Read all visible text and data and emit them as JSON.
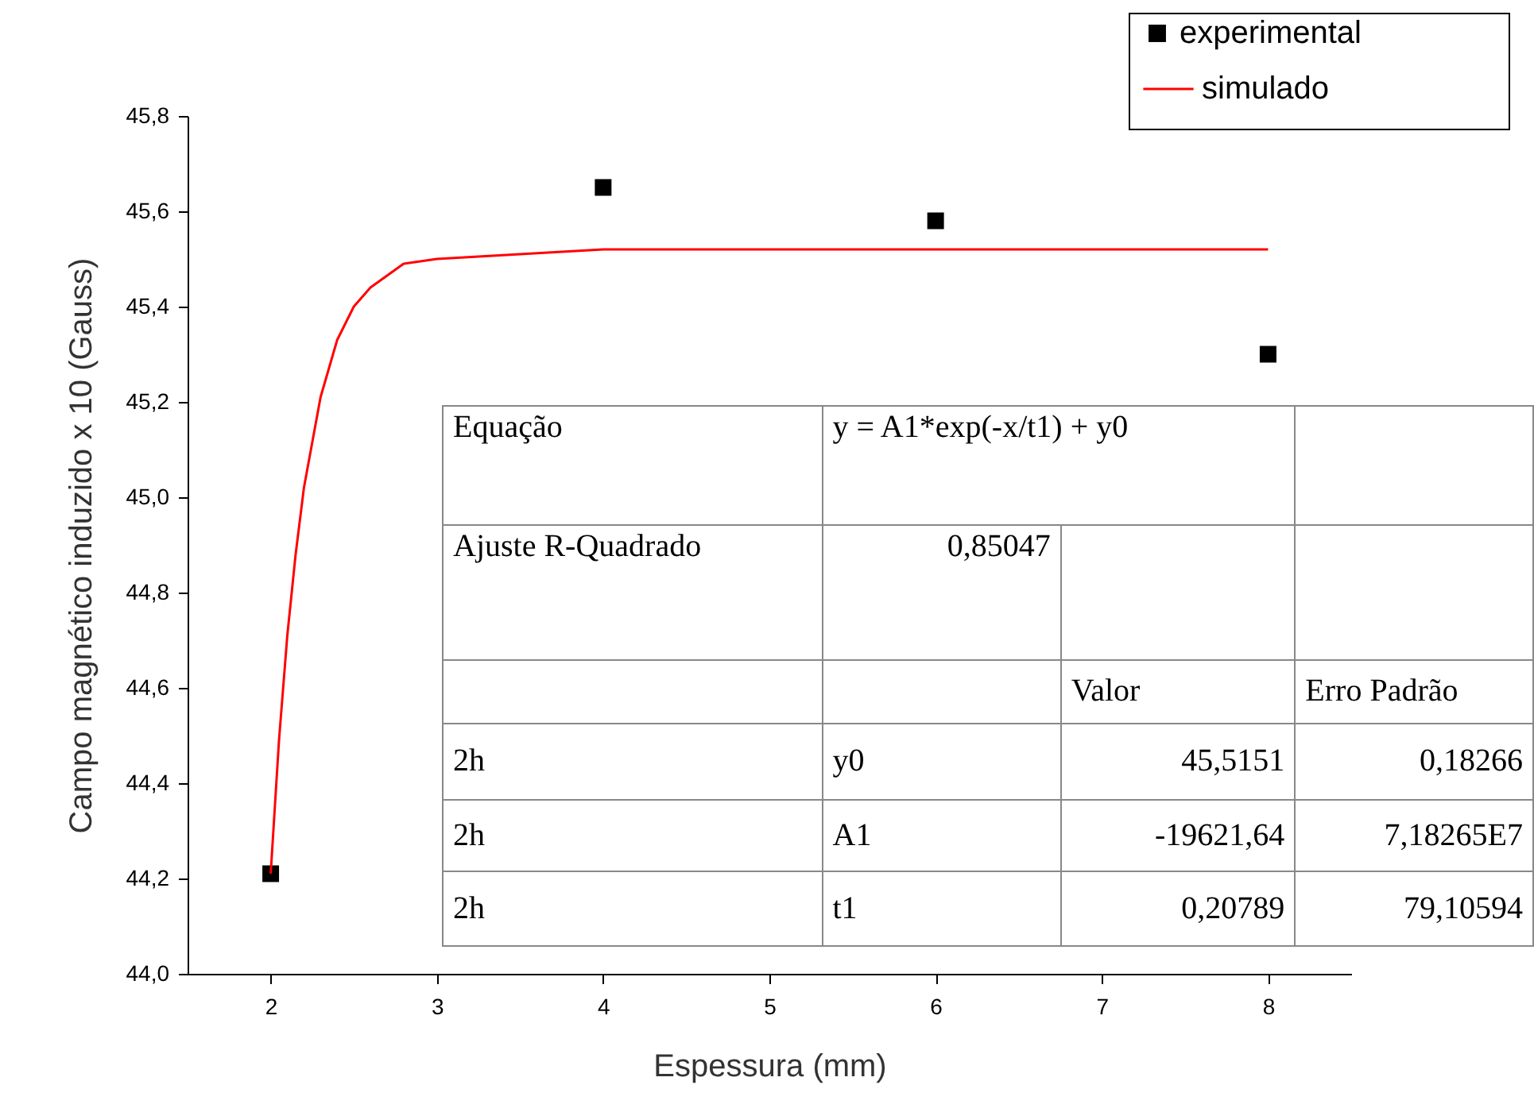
{
  "chart_data": {
    "type": "scatter",
    "xlabel": "Espessura (mm)",
    "ylabel": "Campo magnético induzido x 10 (Gauss)",
    "xlim": [
      1.5,
      8.5
    ],
    "xticks": [
      2,
      3,
      4,
      5,
      6,
      7,
      8
    ],
    "ylim": [
      44.0,
      45.8
    ],
    "yticks": [
      {
        "value": 44.0,
        "label": "44,0"
      },
      {
        "value": 44.2,
        "label": "44,2"
      },
      {
        "value": 44.4,
        "label": "44,4"
      },
      {
        "value": 44.6,
        "label": "44,6"
      },
      {
        "value": 44.8,
        "label": "44,8"
      },
      {
        "value": 45.0,
        "label": "45,0"
      },
      {
        "value": 45.2,
        "label": "45,2"
      },
      {
        "value": 45.4,
        "label": "45,4"
      },
      {
        "value": 45.6,
        "label": "45,6"
      },
      {
        "value": 45.8,
        "label": "45,8"
      }
    ],
    "grid": false,
    "legend": "top right",
    "series": [
      {
        "name": "experimental",
        "marker": "square",
        "color": "#000000",
        "x": [
          2,
          4,
          6,
          8
        ],
        "values": [
          44.21,
          45.65,
          45.58,
          45.3
        ]
      },
      {
        "name": "simulado",
        "type": "line",
        "color": "#ff0000",
        "x": [
          2,
          2.05,
          2.1,
          2.15,
          2.2,
          2.3,
          2.4,
          2.5,
          2.6,
          2.8,
          3,
          3.5,
          4,
          5,
          6,
          7,
          8
        ],
        "values": [
          44.21,
          44.49,
          44.71,
          44.88,
          45.02,
          45.21,
          45.33,
          45.4,
          45.44,
          45.49,
          45.5,
          45.51,
          45.52,
          45.52,
          45.52,
          45.52,
          45.52
        ]
      }
    ],
    "annotations": [
      "Equação",
      "y = A1*exp(-x/t1) + y0",
      "Ajuste R-Quadrado",
      "0,85047",
      "Valor",
      "Erro Padrão",
      "2h",
      "y0",
      "45,5151",
      "0,18266",
      "2h",
      "A1",
      "-19621,64",
      "7,18265E7",
      "2h",
      "t1",
      "0,20789",
      "79,10594"
    ]
  }
}
